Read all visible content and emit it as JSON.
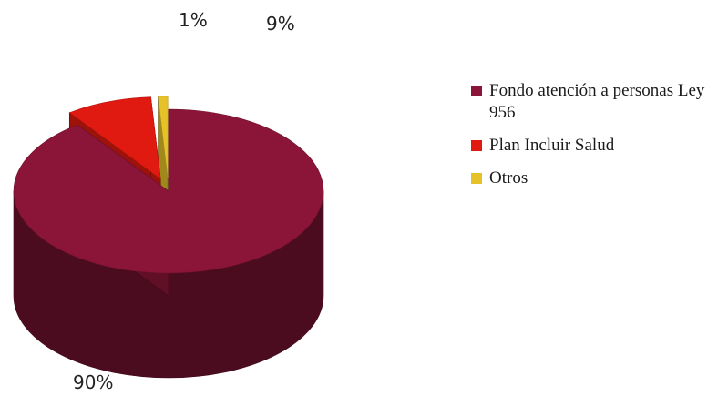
{
  "chart_data": {
    "type": "pie",
    "style": "3d-exploded",
    "categories": [
      "Fondo atención a personas Ley 956",
      "Plan Incluir Salud",
      "Otros"
    ],
    "values": [
      90,
      9,
      1
    ],
    "value_labels": [
      "90%",
      "9%",
      "1%"
    ],
    "colors": [
      "#8b1538",
      "#e01a10",
      "#e6c229"
    ],
    "legend_position": "right"
  }
}
